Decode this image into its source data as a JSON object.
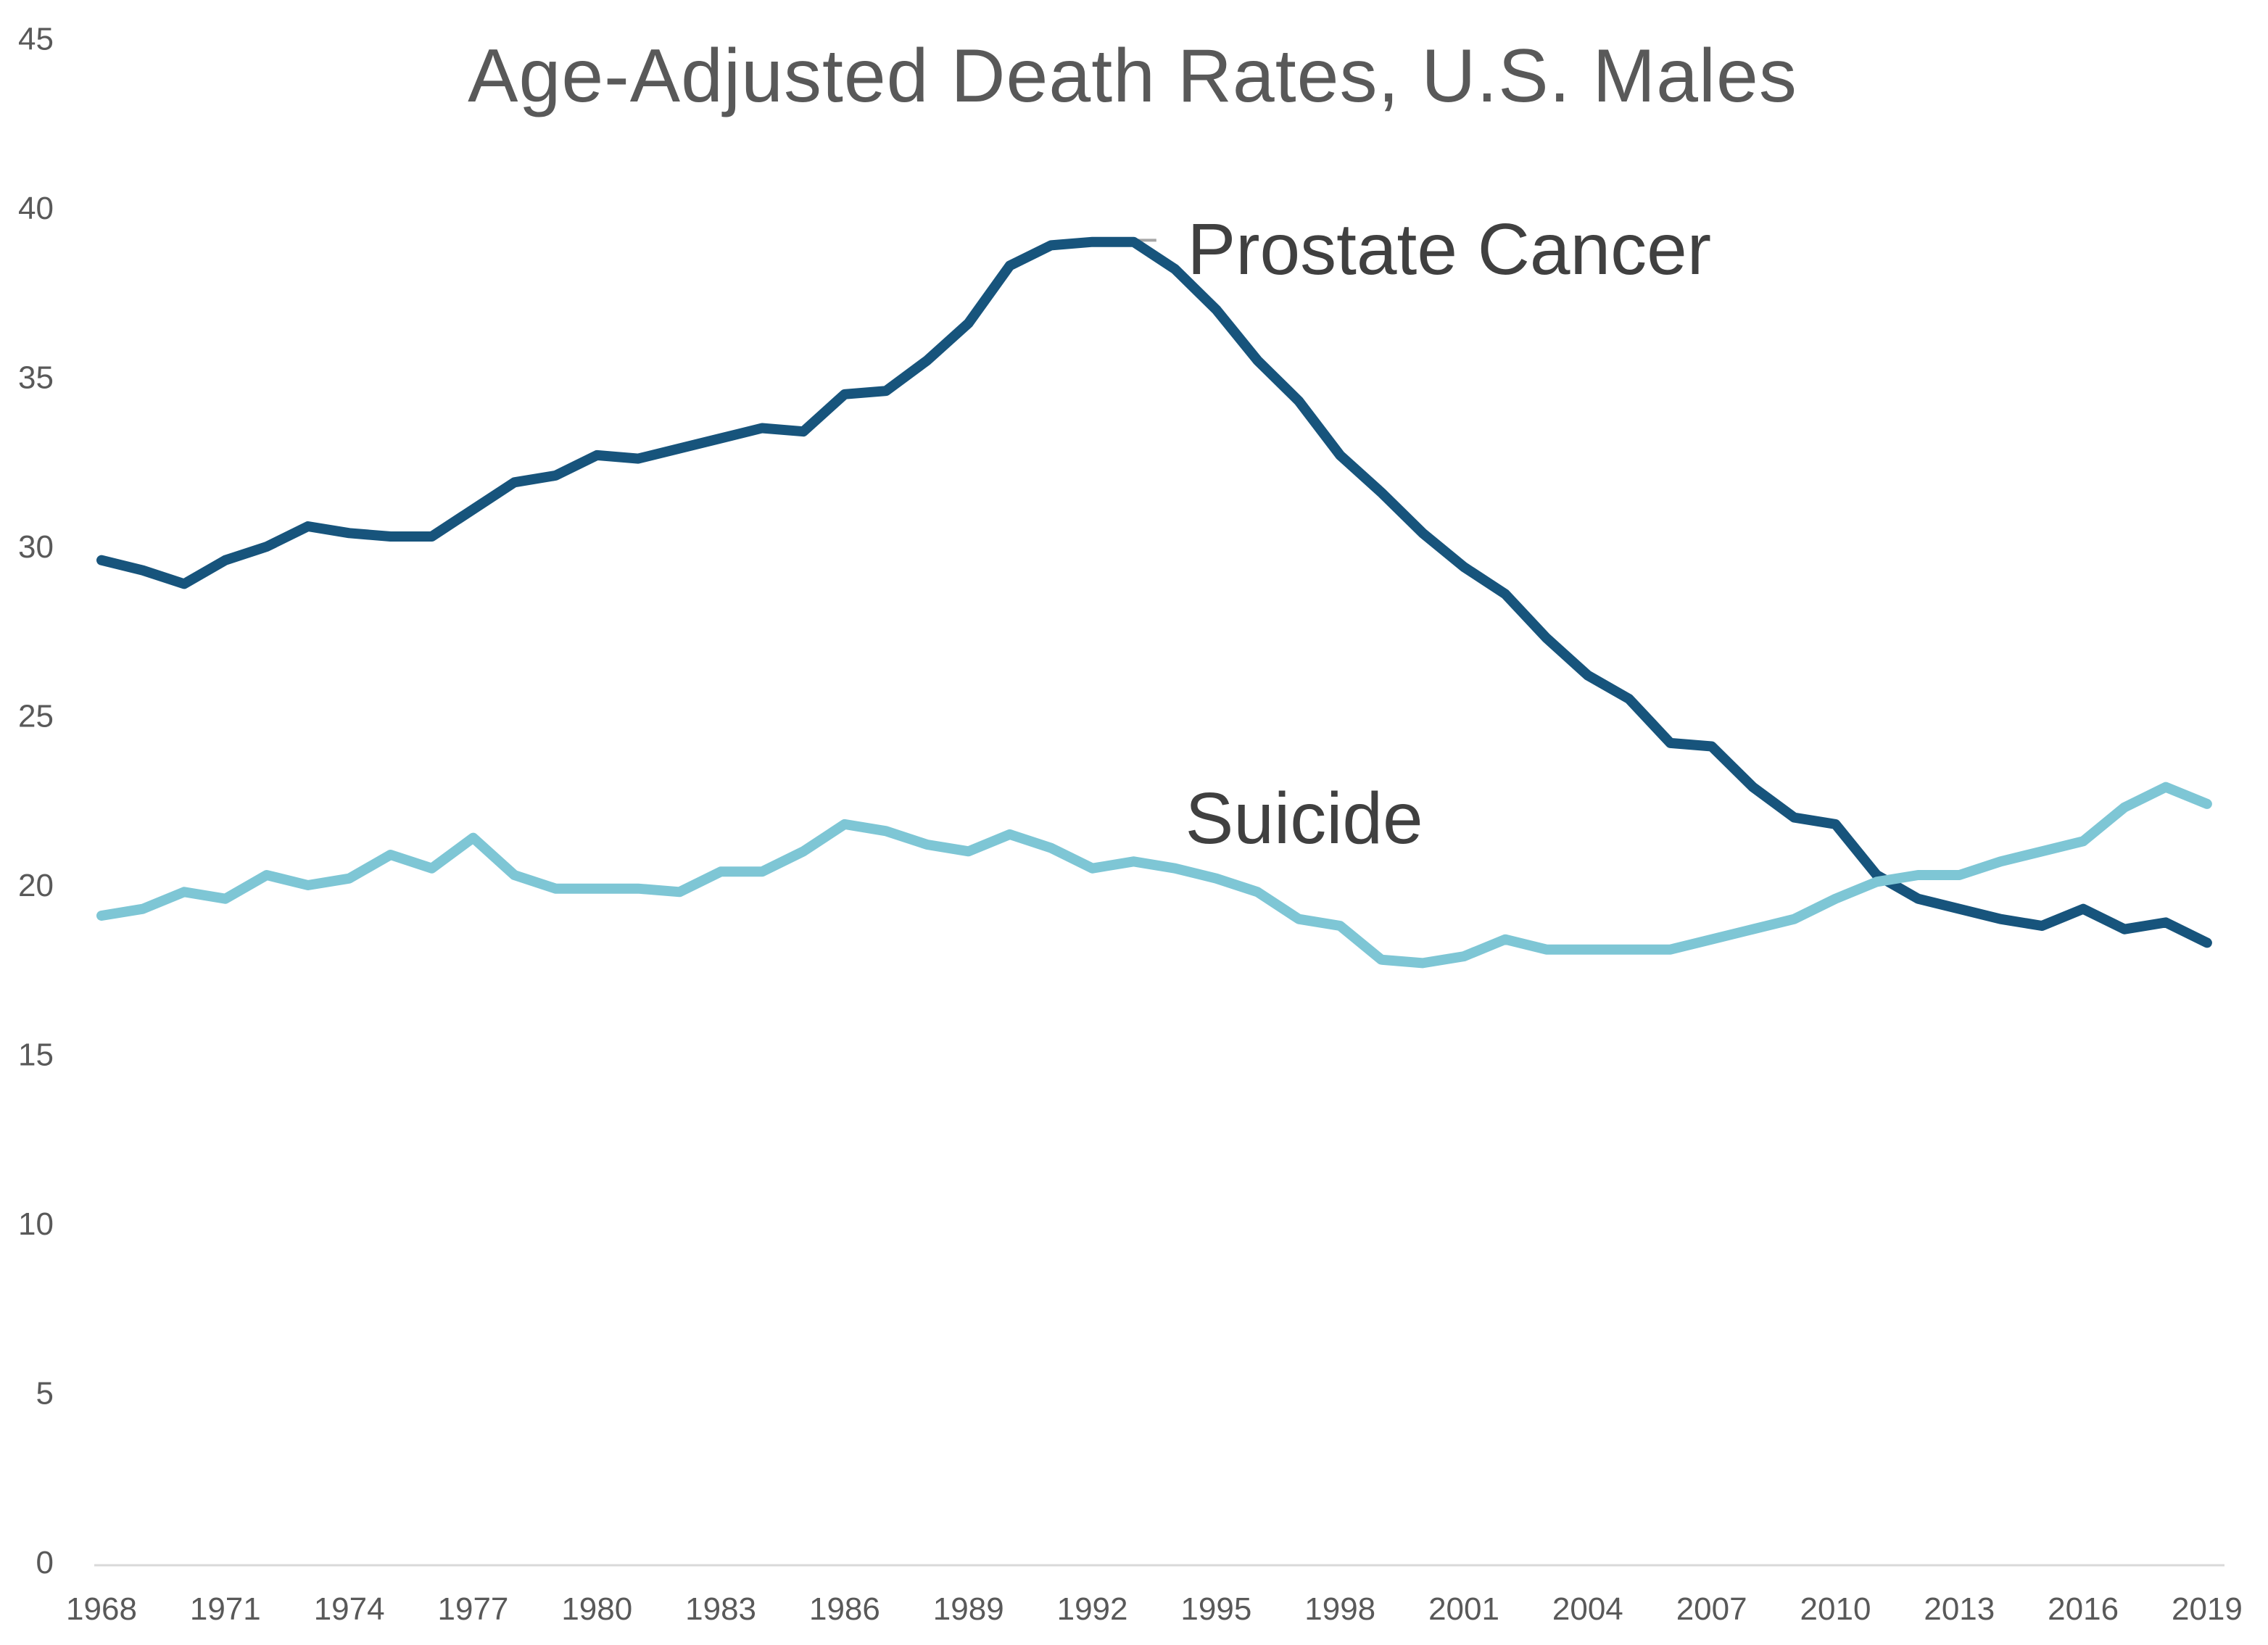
{
  "chart_data": {
    "type": "line",
    "title": "Age-Adjusted Death Rates, U.S. Males",
    "xlabel": "",
    "ylabel": "",
    "xlim": [
      1968,
      2019
    ],
    "ylim": [
      0,
      45
    ],
    "grid": false,
    "legend_position": "inline-labels",
    "background_color": "#ffffff",
    "axis_line_color": "#d9d9d9",
    "tick_label_color": "#595959",
    "title_color": "#595959",
    "x": [
      1968,
      1969,
      1970,
      1971,
      1972,
      1973,
      1974,
      1975,
      1976,
      1977,
      1978,
      1979,
      1980,
      1981,
      1982,
      1983,
      1984,
      1985,
      1986,
      1987,
      1988,
      1989,
      1990,
      1991,
      1992,
      1993,
      1994,
      1995,
      1996,
      1997,
      1998,
      1999,
      2000,
      2001,
      2002,
      2003,
      2004,
      2005,
      2006,
      2007,
      2008,
      2009,
      2010,
      2011,
      2012,
      2013,
      2014,
      2015,
      2016,
      2017,
      2018,
      2019
    ],
    "x_tick_labels": [
      "1968",
      "1971",
      "1974",
      "1977",
      "1980",
      "1983",
      "1986",
      "1989",
      "1992",
      "1995",
      "1998",
      "2001",
      "2004",
      "2007",
      "2010",
      "2013",
      "2016",
      "2019"
    ],
    "y_ticks": [
      0,
      5,
      10,
      15,
      20,
      25,
      30,
      35,
      40,
      45
    ],
    "series": [
      {
        "name": "Prostate Cancer",
        "color": "#17547C",
        "values": [
          29.6,
          29.3,
          28.9,
          29.6,
          30.0,
          30.6,
          30.4,
          30.3,
          30.3,
          31.1,
          31.9,
          32.1,
          32.7,
          32.6,
          32.9,
          33.2,
          33.5,
          33.4,
          34.5,
          34.6,
          35.5,
          36.6,
          38.3,
          38.9,
          39.0,
          39.0,
          38.2,
          37.0,
          35.5,
          34.3,
          32.7,
          31.6,
          30.4,
          29.4,
          28.6,
          27.3,
          26.2,
          25.5,
          24.2,
          24.1,
          22.9,
          22.0,
          21.8,
          20.3,
          19.6,
          19.3,
          19.0,
          18.8,
          19.3,
          18.7,
          18.9,
          18.3
        ]
      },
      {
        "name": "Suicide",
        "color": "#7EC6D5",
        "values": [
          19.1,
          19.3,
          19.8,
          19.6,
          20.3,
          20.0,
          20.2,
          20.9,
          20.5,
          21.4,
          20.3,
          19.9,
          19.9,
          19.9,
          19.8,
          20.4,
          20.4,
          21.0,
          21.8,
          21.6,
          21.2,
          21.0,
          21.5,
          21.1,
          20.5,
          20.7,
          20.5,
          20.2,
          19.8,
          19.0,
          18.8,
          17.8,
          17.7,
          17.9,
          18.4,
          18.1,
          18.1,
          18.1,
          18.1,
          18.4,
          18.7,
          19.0,
          19.6,
          20.1,
          20.3,
          20.3,
          20.7,
          21.0,
          21.3,
          22.3,
          22.9,
          22.4
        ]
      }
    ],
    "series_labels": [
      {
        "text": "Prostate Cancer",
        "x_year": 1994.3,
        "y_value": 38.05,
        "color": "#404040"
      },
      {
        "text": "Suicide",
        "x_year": 1994.25,
        "y_value": 21.24,
        "color": "#404040"
      }
    ],
    "leader_line": {
      "from_year": 1992.9,
      "to_year": 1993.55,
      "y_value": 39.05,
      "color": "#A6A6A6"
    }
  }
}
